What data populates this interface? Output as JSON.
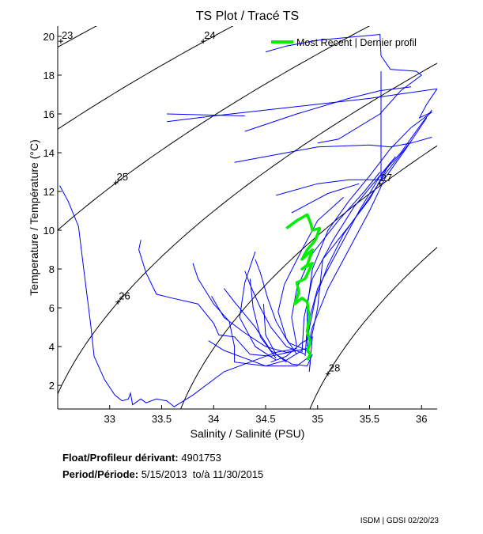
{
  "chart_data": {
    "type": "line",
    "title": "TS Plot / Tracé TS",
    "xlabel": "Salinity / Salinité (PSU)",
    "ylabel": "Temperature / Température (°C)",
    "xlim": [
      32.5,
      36.15
    ],
    "ylim": [
      0.78,
      20.53
    ],
    "xticks": [
      33,
      33.5,
      34,
      34.5,
      35,
      35.5,
      36
    ],
    "yticks": [
      2,
      4,
      6,
      8,
      10,
      12,
      14,
      16,
      18,
      20
    ],
    "grid": false,
    "legend": {
      "placement": "top-right",
      "entries": [
        {
          "label": "Most Recent | Dernier profil",
          "color": "#00ee00"
        }
      ]
    },
    "density_contours": [
      {
        "sigma": 23,
        "label_at": [
          32.53,
          19.75
        ]
      },
      {
        "sigma": 24,
        "label_at": [
          33.9,
          19.75
        ]
      },
      {
        "sigma": 25,
        "label_at": [
          33.06,
          12.45
        ]
      },
      {
        "sigma": 26,
        "label_at": [
          33.08,
          6.3
        ]
      },
      {
        "sigma": 27,
        "label_at": [
          35.6,
          12.4
        ]
      },
      {
        "sigma": 28,
        "label_at": [
          35.1,
          2.6
        ]
      }
    ],
    "profile_color": "#0000ff",
    "recent_color": "#00ee00",
    "contour_color": "#000000",
    "profiles": [
      [
        [
          32.52,
          12.3
        ],
        [
          32.6,
          11.5
        ],
        [
          32.7,
          10.2
        ],
        [
          32.75,
          8
        ],
        [
          32.82,
          5
        ],
        [
          32.85,
          3.5
        ],
        [
          32.95,
          2.3
        ],
        [
          33.05,
          1.5
        ],
        [
          33.12,
          1.2
        ],
        [
          33.18,
          1.3
        ],
        [
          33.2,
          1.6
        ],
        [
          33.22,
          1.0
        ],
        [
          33.3,
          1.3
        ],
        [
          33.35,
          1.1
        ],
        [
          33.45,
          1.3
        ],
        [
          33.55,
          1.2
        ],
        [
          33.62,
          0.9
        ],
        [
          33.8,
          1.5
        ],
        [
          34.1,
          2.7
        ],
        [
          34.4,
          3.3
        ],
        [
          34.6,
          3.7
        ],
        [
          34.8,
          3.9
        ]
      ],
      [
        [
          33.3,
          9.5
        ],
        [
          33.28,
          9.0
        ],
        [
          33.35,
          7.8
        ],
        [
          33.45,
          6.7
        ],
        [
          33.6,
          6.5
        ],
        [
          33.85,
          6.2
        ],
        [
          34.0,
          5.2
        ],
        [
          34.05,
          4.6
        ],
        [
          34.2,
          4.5
        ],
        [
          34.35,
          3.6
        ],
        [
          34.55,
          3.5
        ],
        [
          34.8,
          3.8
        ]
      ],
      [
        [
          33.8,
          8.3
        ],
        [
          33.85,
          7.5
        ],
        [
          34.0,
          6.2
        ],
        [
          34.15,
          5.3
        ],
        [
          34.2,
          4.0
        ],
        [
          34.2,
          3.2
        ],
        [
          34.5,
          3.0
        ],
        [
          34.7,
          3.3
        ],
        [
          34.85,
          3.8
        ]
      ],
      [
        [
          33.98,
          6.6
        ],
        [
          34.1,
          5.5
        ],
        [
          34.3,
          4.7
        ],
        [
          34.5,
          4.0
        ],
        [
          34.7,
          3.7
        ],
        [
          34.9,
          3.9
        ]
      ],
      [
        [
          34.3,
          7.9
        ],
        [
          34.35,
          7.2
        ],
        [
          34.45,
          6.0
        ],
        [
          34.55,
          5.0
        ],
        [
          34.7,
          4.0
        ],
        [
          34.88,
          3.6
        ]
      ],
      [
        [
          34.4,
          8.5
        ],
        [
          34.45,
          7.8
        ],
        [
          34.52,
          6.5
        ],
        [
          34.6,
          5.3
        ],
        [
          34.72,
          4.2
        ],
        [
          34.9,
          3.8
        ]
      ],
      [
        [
          33.55,
          15.6
        ],
        [
          34.0,
          15.9
        ],
        [
          34.5,
          16.2
        ],
        [
          35.0,
          16.5
        ],
        [
          35.5,
          16.8
        ],
        [
          36.15,
          17.3
        ],
        [
          36.05,
          16.5
        ],
        [
          35.98,
          15.8
        ],
        [
          36.1,
          16.1
        ],
        [
          35.9,
          15.3
        ],
        [
          35.7,
          14.2
        ],
        [
          35.6,
          13.5
        ],
        [
          35.5,
          12.8
        ],
        [
          35.3,
          11.5
        ],
        [
          35.1,
          10.0
        ],
        [
          34.95,
          8.0
        ],
        [
          34.9,
          6.0
        ],
        [
          34.9,
          4.0
        ]
      ],
      [
        [
          34.5,
          19.2
        ],
        [
          34.7,
          19.5
        ],
        [
          35.0,
          19.8
        ],
        [
          35.6,
          20.1
        ],
        [
          35.61,
          19.0
        ],
        [
          35.7,
          18.3
        ],
        [
          35.95,
          18.2
        ],
        [
          36.0,
          18.0
        ],
        [
          35.8,
          17.2
        ],
        [
          35.6,
          16.0
        ],
        [
          35.2,
          14.7
        ],
        [
          35.0,
          14.5
        ]
      ],
      [
        [
          35.61,
          18.2
        ],
        [
          35.61,
          12.7
        ]
      ],
      [
        [
          33.55,
          16.0
        ],
        [
          34.3,
          15.9
        ]
      ],
      [
        [
          34.2,
          13.5
        ],
        [
          34.6,
          13.9
        ],
        [
          35.0,
          14.3
        ],
        [
          35.5,
          14.4
        ],
        [
          35.7,
          14.3
        ],
        [
          35.9,
          14.5
        ],
        [
          36.1,
          14.8
        ]
      ],
      [
        [
          34.6,
          11.8
        ],
        [
          35.0,
          12.4
        ],
        [
          35.3,
          12.6
        ],
        [
          35.62,
          12.6
        ]
      ],
      [
        [
          34.75,
          10.9
        ],
        [
          35.1,
          11.9
        ],
        [
          35.4,
          12.4
        ]
      ],
      [
        [
          34.3,
          15.1
        ],
        [
          34.8,
          16.0
        ],
        [
          35.3,
          16.8
        ],
        [
          35.6,
          17.2
        ],
        [
          35.9,
          17.4
        ]
      ],
      [
        [
          34.88,
          3.5
        ],
        [
          34.9,
          5
        ],
        [
          35.0,
          7
        ],
        [
          35.2,
          9
        ],
        [
          35.4,
          11
        ],
        [
          35.6,
          12.8
        ],
        [
          35.8,
          14
        ],
        [
          36.0,
          15.5
        ],
        [
          36.1,
          16.2
        ]
      ],
      [
        [
          34.85,
          3.7
        ],
        [
          34.87,
          5.5
        ],
        [
          34.95,
          7.5
        ],
        [
          35.15,
          9.5
        ],
        [
          35.35,
          11.2
        ],
        [
          35.55,
          12.5
        ],
        [
          35.75,
          13.8
        ]
      ],
      [
        [
          34.9,
          3.8
        ],
        [
          34.95,
          5
        ],
        [
          35.1,
          7
        ],
        [
          35.3,
          9
        ],
        [
          35.5,
          11
        ],
        [
          35.65,
          12.7
        ],
        [
          35.85,
          14.2
        ],
        [
          36.05,
          15.8
        ]
      ],
      [
        [
          34.8,
          4
        ],
        [
          34.75,
          5.5
        ],
        [
          34.8,
          7
        ],
        [
          34.95,
          8.8
        ],
        [
          35.2,
          10.5
        ],
        [
          35.45,
          12
        ],
        [
          35.6,
          13
        ]
      ],
      [
        [
          34.6,
          3.3
        ],
        [
          34.4,
          4
        ],
        [
          34.25,
          5.5
        ],
        [
          34.3,
          7.3
        ],
        [
          34.4,
          8.9
        ]
      ],
      [
        [
          34.6,
          3.4
        ],
        [
          34.45,
          4.5
        ],
        [
          34.38,
          6
        ],
        [
          34.35,
          7.5
        ]
      ],
      [
        [
          34.7,
          3.2
        ],
        [
          34.55,
          3.8
        ],
        [
          34.4,
          5
        ],
        [
          34.2,
          6.3
        ],
        [
          34.1,
          7
        ]
      ],
      [
        [
          34.9,
          3.4
        ],
        [
          34.8,
          3.0
        ],
        [
          34.5,
          3.0
        ],
        [
          34.3,
          3.4
        ],
        [
          34.1,
          3.8
        ],
        [
          33.95,
          4.3
        ]
      ],
      [
        [
          34.92,
          3.9
        ],
        [
          35.0,
          6.0
        ],
        [
          35.05,
          8.5
        ],
        [
          35.3,
          10.2
        ],
        [
          35.5,
          11.6
        ],
        [
          35.7,
          13.5
        ]
      ],
      [
        [
          34.8,
          3.6
        ],
        [
          34.7,
          4.4
        ],
        [
          34.62,
          5.8
        ],
        [
          34.68,
          7.2
        ],
        [
          34.85,
          9
        ],
        [
          35.0,
          10.5
        ],
        [
          35.25,
          11.7
        ]
      ],
      [
        [
          34.95,
          3.6
        ],
        [
          34.9,
          3.0
        ],
        [
          34.75,
          3.1
        ],
        [
          34.6,
          3.6
        ],
        [
          34.5,
          4.6
        ],
        [
          34.48,
          6.2
        ]
      ],
      [
        [
          34.9,
          4.4
        ],
        [
          34.98,
          6.5
        ],
        [
          35.1,
          8.2
        ],
        [
          35.25,
          9.8
        ],
        [
          35.45,
          11.3
        ],
        [
          35.65,
          12.9
        ],
        [
          35.9,
          14.6
        ]
      ],
      [
        [
          34.93,
          3.2
        ],
        [
          34.92,
          2.7
        ],
        [
          34.95,
          4.5
        ],
        [
          34.85,
          4.2
        ],
        [
          34.7,
          3.5
        ],
        [
          34.55,
          3.2
        ]
      ]
    ],
    "recent_profile": [
      [
        34.7,
        10.1
      ],
      [
        34.8,
        10.5
      ],
      [
        34.9,
        10.8
      ],
      [
        34.93,
        10.4
      ],
      [
        34.95,
        10.0
      ],
      [
        35.02,
        10.1
      ],
      [
        34.98,
        9.5
      ],
      [
        34.9,
        9.0
      ],
      [
        34.85,
        8.5
      ],
      [
        34.95,
        9.0
      ],
      [
        34.9,
        8.2
      ],
      [
        34.85,
        8.0
      ],
      [
        34.95,
        8.3
      ],
      [
        34.88,
        7.5
      ],
      [
        34.8,
        7.3
      ],
      [
        34.82,
        6.8
      ],
      [
        34.78,
        6.2
      ],
      [
        34.85,
        6.5
      ],
      [
        34.9,
        6.3
      ],
      [
        34.92,
        5.5
      ],
      [
        34.9,
        4.8
      ],
      [
        34.93,
        4.2
      ],
      [
        34.9,
        3.8
      ],
      [
        34.93,
        3.6
      ],
      [
        34.9,
        3.3
      ]
    ]
  },
  "info": {
    "float_label": "Float/Profileur dérivant:",
    "float_id": "4901753",
    "period_label": "Period/Période:",
    "period_start": "5/15/2013",
    "period_sep": "to/à",
    "period_end": "11/30/2015"
  },
  "footer": "ISDM | GDSI 02/20/23"
}
